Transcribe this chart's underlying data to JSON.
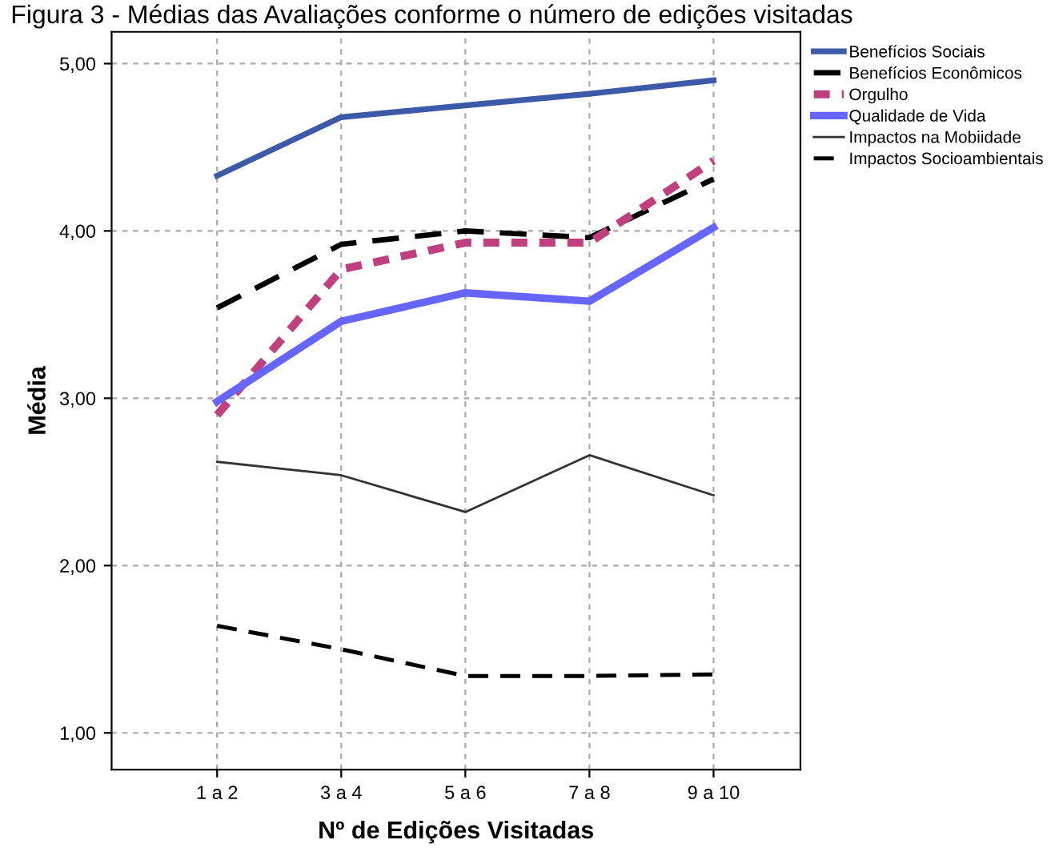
{
  "chart_data": {
    "type": "line",
    "title": "Figura 3 - Médias das Avaliações conforme o número de edições visitadas",
    "xlabel": "Nº de Edições Visitadas",
    "ylabel": "Média",
    "categories": [
      "1 a 2",
      "3 a 4",
      "5 a 6",
      "7 a 8",
      "9 a 10"
    ],
    "series": [
      {
        "name": "Benefícios Sociais",
        "color": "#3c5aa8",
        "line_style": "solid",
        "values": [
          4.33,
          4.68,
          4.75,
          4.82,
          4.9
        ]
      },
      {
        "name": "Benefícios Econômicos",
        "color": "#000000",
        "line_style": "dashed",
        "values": [
          3.54,
          3.92,
          4.0,
          3.96,
          4.31
        ]
      },
      {
        "name": "Orgulho",
        "color": "#c0407f",
        "line_style": "dotted",
        "values": [
          2.9,
          3.77,
          3.93,
          3.93,
          4.42
        ]
      },
      {
        "name": "Qualidade de Vida",
        "color": "#6666ff",
        "line_style": "solid",
        "values": [
          2.98,
          3.46,
          3.63,
          3.58,
          4.02
        ]
      },
      {
        "name": "Impactos na Mobiidade",
        "color": "#333333",
        "line_style": "solid",
        "values": [
          2.62,
          2.54,
          2.32,
          2.66,
          2.42
        ]
      },
      {
        "name": "Impactos Socioambientais",
        "color": "#000000",
        "line_style": "dashed",
        "values": [
          1.64,
          1.5,
          1.34,
          1.34,
          1.35
        ]
      }
    ],
    "ylim": [
      0.78,
      5.19
    ],
    "yticks": [
      {
        "value": 1,
        "label": "1,00"
      },
      {
        "value": 2,
        "label": "2,00"
      },
      {
        "value": 3,
        "label": "3,00"
      },
      {
        "value": 4,
        "label": "4,00"
      },
      {
        "value": 5,
        "label": "5,00"
      }
    ],
    "grid": true,
    "legend": "top right",
    "marker": "none"
  }
}
